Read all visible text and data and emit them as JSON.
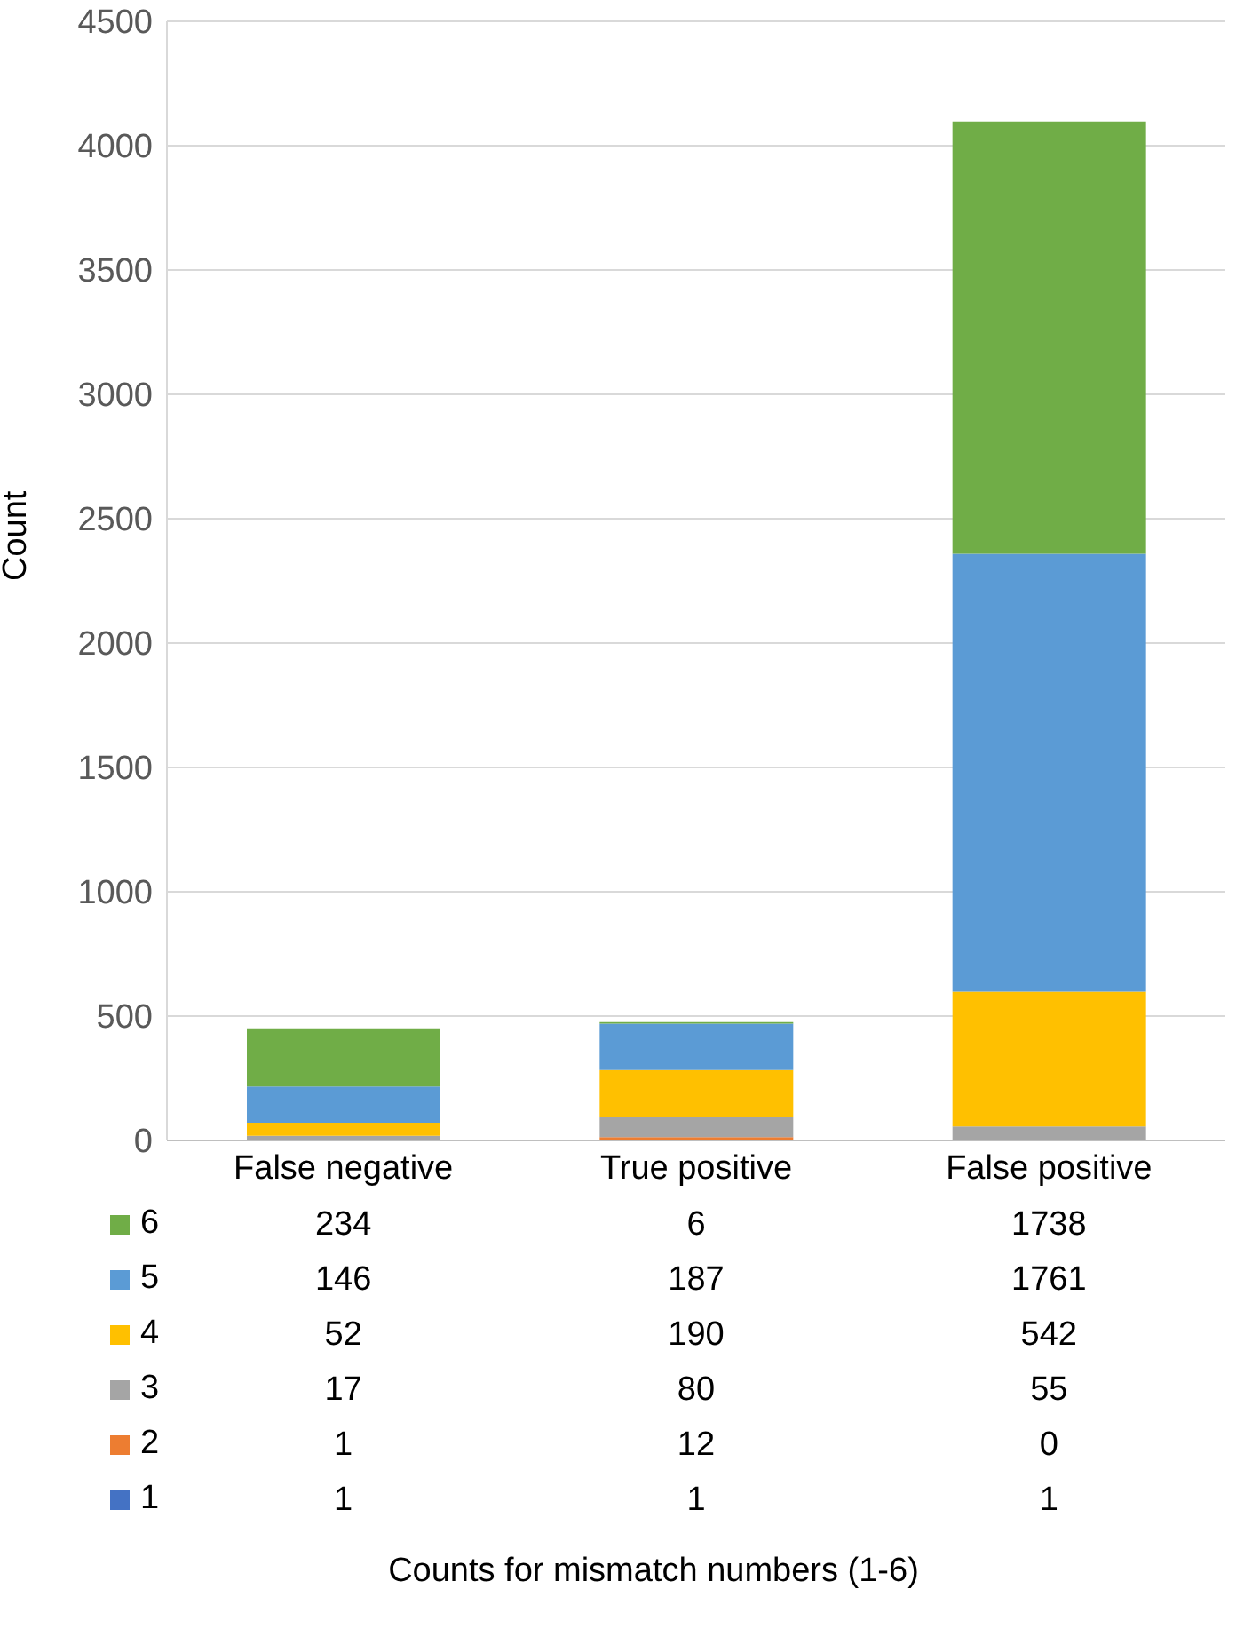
{
  "chart_data": {
    "type": "bar",
    "stacked": true,
    "annotations": [
      "Counts for mismatch numbers (1-6)"
    ],
    "ylabel": "Count",
    "categories": [
      "False negative",
      "True positive",
      "False positive"
    ],
    "series": [
      {
        "name": "1",
        "color": "#4472c4",
        "values": [
          1,
          1,
          1
        ]
      },
      {
        "name": "2",
        "color": "#ed7d31",
        "values": [
          1,
          12,
          0
        ]
      },
      {
        "name": "3",
        "color": "#a5a5a5",
        "values": [
          17,
          80,
          55
        ]
      },
      {
        "name": "4",
        "color": "#ffc000",
        "values": [
          52,
          190,
          542
        ]
      },
      {
        "name": "5",
        "color": "#5b9bd5",
        "values": [
          146,
          187,
          1761
        ]
      },
      {
        "name": "6",
        "color": "#70ad47",
        "values": [
          234,
          6,
          1738
        ]
      }
    ],
    "ylim": [
      0,
      4500
    ],
    "yticks": [
      0,
      500,
      1000,
      1500,
      2000,
      2500,
      3000,
      3500,
      4000,
      4500
    ],
    "grid": "y",
    "legend": "bottom",
    "data_labels": true
  }
}
